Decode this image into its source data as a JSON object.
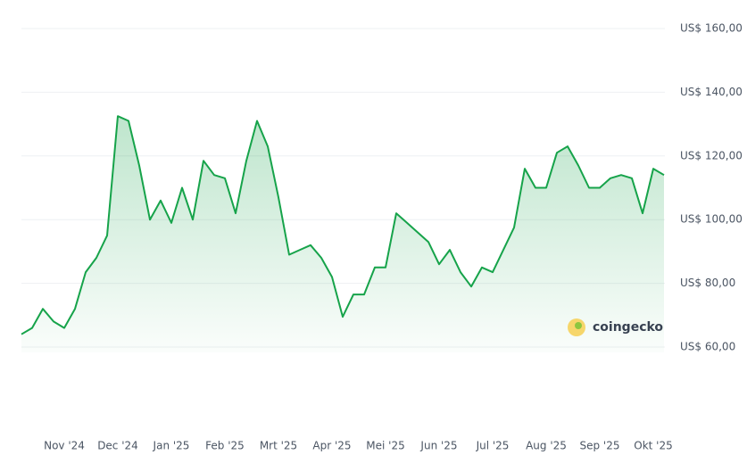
{
  "chart_data": {
    "type": "line",
    "watermark": "coingecko",
    "categories": [
      null,
      null,
      null,
      null,
      "Nov '24",
      null,
      null,
      null,
      null,
      "Dec '24",
      null,
      null,
      null,
      null,
      "Jan '25",
      null,
      null,
      null,
      null,
      "Feb '25",
      null,
      null,
      null,
      null,
      "Mrt '25",
      null,
      null,
      null,
      null,
      "Apr '25",
      null,
      null,
      null,
      null,
      "Mei '25",
      null,
      null,
      null,
      null,
      "Jun '25",
      null,
      null,
      null,
      null,
      "Jul '25",
      null,
      null,
      null,
      null,
      "Aug '25",
      null,
      null,
      null,
      null,
      "Sep '25",
      null,
      null,
      null,
      null,
      "Okt '25",
      null
    ],
    "values": [
      64,
      66,
      72,
      68,
      66,
      72,
      83.5,
      88,
      95,
      132.5,
      131,
      117,
      100,
      106,
      99,
      110,
      100,
      118.5,
      114,
      113,
      102,
      118.5,
      131,
      123,
      107,
      89,
      90.5,
      92,
      88,
      82,
      69.5,
      76.5,
      76.5,
      85,
      85,
      102,
      99,
      96,
      93,
      86,
      90.5,
      83.5,
      79,
      85,
      83.5,
      90.5,
      97.5,
      116,
      110,
      110,
      121,
      123,
      117,
      110,
      110,
      113,
      114,
      113,
      102,
      116,
      114
    ],
    "color": "#16a34a",
    "ylim": [
      60,
      160
    ],
    "yticks": [
      {
        "value": 60,
        "label": "US$ 60,00"
      },
      {
        "value": 80,
        "label": "US$ 80,00"
      },
      {
        "value": 100,
        "label": "US$ 100,00"
      },
      {
        "value": 120,
        "label": "US$ 120,00"
      },
      {
        "value": 140,
        "label": "US$ 140,00"
      },
      {
        "value": 160,
        "label": "US$ 160,00"
      }
    ],
    "grid": true
  }
}
